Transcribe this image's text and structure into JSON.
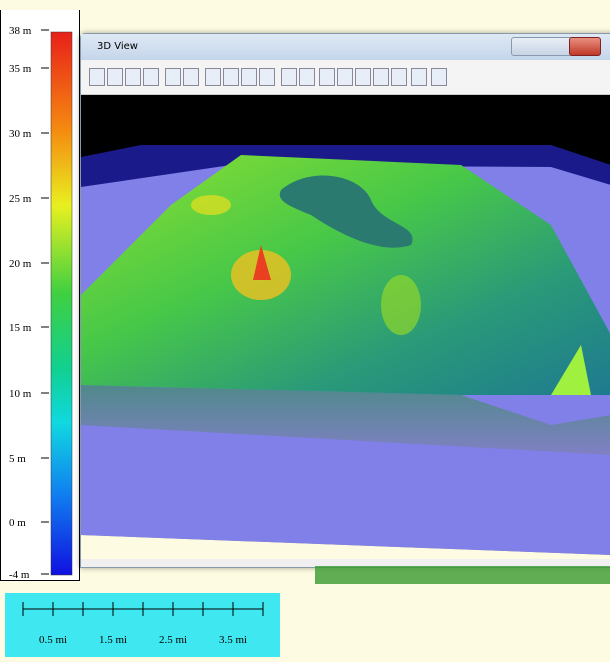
{
  "legend": {
    "labels": [
      "38 m",
      "35 m",
      "30 m",
      "25 m",
      "20 m",
      "15 m",
      "10 m",
      "5 m",
      "0 m",
      "-4 m"
    ]
  },
  "window": {
    "title": "3D View"
  },
  "scale_bar": {
    "labels": [
      "0.5 mi",
      "1.5 mi",
      "2.5 mi",
      "3.5 mi"
    ]
  }
}
